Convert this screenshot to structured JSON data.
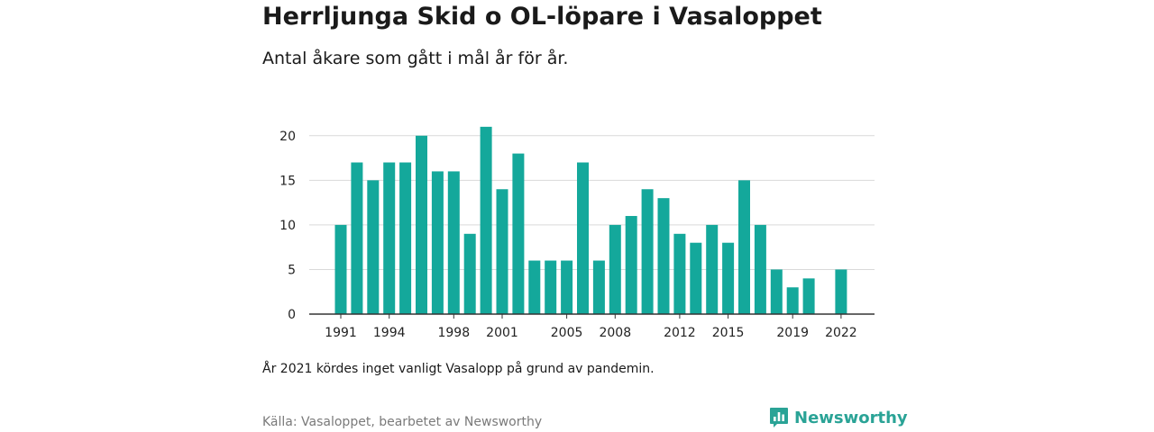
{
  "header": {
    "title": "Herrljunga Skid o OL-löpare i Vasaloppet",
    "subtitle": "Antal åkare som gått i mål år för år."
  },
  "footer": {
    "note": "År 2021 kördes inget vanligt Vasalopp på grund av pandemin.",
    "source": "Källa: Vasaloppet, bearbetet av Newsworthy",
    "brand": "Newsworthy"
  },
  "colors": {
    "bar": "#14a89b",
    "grid": "#d9d9d9",
    "axis": "#333333",
    "brand": "#2aa396"
  },
  "icons": {
    "brand_logo": "newsworthy-logo-icon"
  },
  "chart_data": {
    "type": "bar",
    "title": "Herrljunga Skid o OL-löpare i Vasaloppet",
    "subtitle": "Antal åkare som gått i mål år för år.",
    "xlabel": "",
    "ylabel": "",
    "categories": [
      1991,
      1992,
      1993,
      1994,
      1995,
      1996,
      1997,
      1998,
      1999,
      2000,
      2001,
      2002,
      2003,
      2004,
      2005,
      2006,
      2007,
      2008,
      2009,
      2010,
      2011,
      2012,
      2013,
      2014,
      2015,
      2016,
      2017,
      2018,
      2019,
      2020,
      2021,
      2022
    ],
    "values": [
      10,
      17,
      15,
      17,
      17,
      20,
      16,
      16,
      9,
      21,
      14,
      18,
      6,
      6,
      6,
      17,
      6,
      10,
      11,
      14,
      13,
      9,
      8,
      10,
      8,
      15,
      10,
      5,
      3,
      4,
      null,
      5
    ],
    "x_tick_labels": [
      "1991",
      "1994",
      "1998",
      "2001",
      "2005",
      "2008",
      "2012",
      "2015",
      "2019",
      "2022"
    ],
    "y_ticks": [
      0,
      5,
      10,
      15,
      20
    ],
    "ylim": [
      0,
      22.5
    ],
    "grid": true
  }
}
